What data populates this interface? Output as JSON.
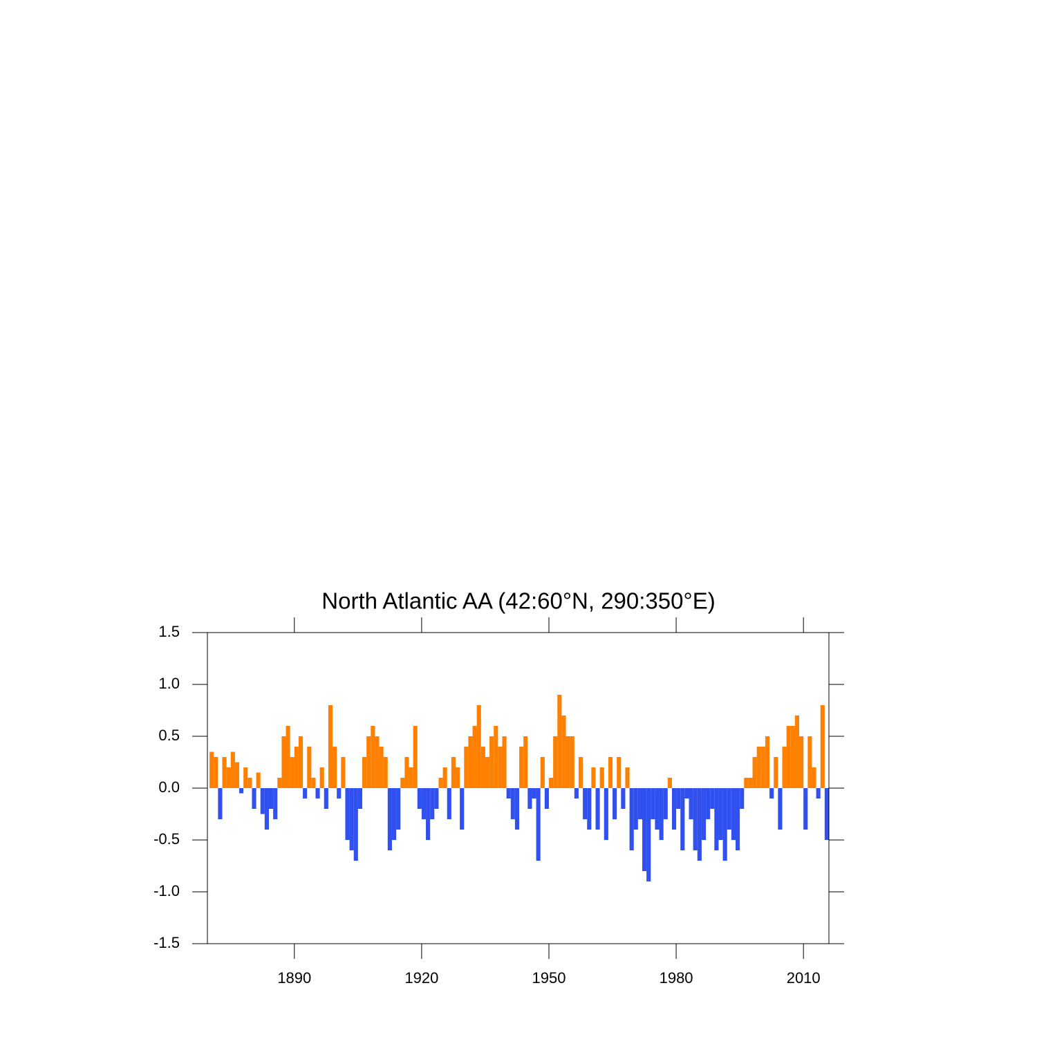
{
  "chart_data": {
    "type": "bar",
    "title": "North Atlantic AA (42:60°N, 290:350°E)",
    "x": [
      1870,
      1871,
      1872,
      1873,
      1874,
      1875,
      1876,
      1877,
      1878,
      1879,
      1880,
      1881,
      1882,
      1883,
      1884,
      1885,
      1886,
      1887,
      1888,
      1889,
      1890,
      1891,
      1892,
      1893,
      1894,
      1895,
      1896,
      1897,
      1898,
      1899,
      1900,
      1901,
      1902,
      1903,
      1904,
      1905,
      1906,
      1907,
      1908,
      1909,
      1910,
      1911,
      1912,
      1913,
      1914,
      1915,
      1916,
      1917,
      1918,
      1919,
      1920,
      1921,
      1922,
      1923,
      1924,
      1925,
      1926,
      1927,
      1928,
      1929,
      1930,
      1931,
      1932,
      1933,
      1934,
      1935,
      1936,
      1937,
      1938,
      1939,
      1940,
      1941,
      1942,
      1943,
      1944,
      1945,
      1946,
      1947,
      1948,
      1949,
      1950,
      1951,
      1952,
      1953,
      1954,
      1955,
      1956,
      1957,
      1958,
      1959,
      1960,
      1961,
      1962,
      1963,
      1964,
      1965,
      1966,
      1967,
      1968,
      1969,
      1970,
      1971,
      1972,
      1973,
      1974,
      1975,
      1976,
      1977,
      1978,
      1979,
      1980,
      1981,
      1982,
      1983,
      1984,
      1985,
      1986,
      1987,
      1988,
      1989,
      1990,
      1991,
      1992,
      1993,
      1994,
      1995,
      1996,
      1997,
      1998,
      1999,
      2000,
      2001,
      2002,
      2003,
      2004,
      2005,
      2006,
      2007,
      2008,
      2009,
      2010,
      2011,
      2012,
      2013,
      2014,
      2015
    ],
    "values": [
      0.35,
      0.3,
      -0.3,
      0.3,
      0.2,
      0.35,
      0.25,
      -0.05,
      0.2,
      0.1,
      -0.2,
      0.15,
      -0.25,
      -0.4,
      -0.2,
      -0.3,
      0.1,
      0.5,
      0.6,
      0.3,
      0.4,
      0.5,
      -0.1,
      0.4,
      0.1,
      -0.1,
      0.2,
      -0.2,
      0.8,
      0.4,
      -0.1,
      0.3,
      -0.5,
      -0.6,
      -0.7,
      -0.2,
      0.3,
      0.5,
      0.6,
      0.5,
      0.4,
      0.3,
      -0.6,
      -0.5,
      -0.4,
      0.1,
      0.3,
      0.2,
      0.6,
      -0.2,
      -0.3,
      -0.5,
      -0.3,
      -0.2,
      0.1,
      0.2,
      -0.3,
      0.3,
      0.2,
      -0.4,
      0.4,
      0.5,
      0.6,
      0.8,
      0.4,
      0.3,
      0.5,
      0.6,
      0.4,
      0.5,
      -0.1,
      -0.3,
      -0.4,
      0.4,
      0.5,
      -0.2,
      -0.1,
      -0.7,
      0.3,
      -0.2,
      0.1,
      0.5,
      0.9,
      0.7,
      0.5,
      0.5,
      -0.1,
      0.3,
      -0.3,
      -0.4,
      0.2,
      -0.4,
      0.2,
      -0.5,
      0.3,
      -0.3,
      0.3,
      -0.2,
      0.2,
      -0.6,
      -0.4,
      -0.3,
      -0.8,
      -0.9,
      -0.3,
      -0.4,
      -0.5,
      -0.3,
      0.1,
      -0.4,
      -0.2,
      -0.6,
      -0.1,
      -0.3,
      -0.6,
      -0.7,
      -0.5,
      -0.3,
      -0.2,
      -0.6,
      -0.5,
      -0.7,
      -0.4,
      -0.5,
      -0.6,
      -0.2,
      0.1,
      0.1,
      0.3,
      0.4,
      0.4,
      0.5,
      -0.1,
      0.3,
      -0.4,
      0.4,
      0.6,
      0.6,
      0.7,
      0.5,
      -0.4,
      0.5,
      0.2,
      -0.1,
      0.8,
      -0.5
    ],
    "above_color": "#ff8000",
    "below_color": "#3050f0",
    "xlim": [
      1869.5,
      2016
    ],
    "xticks": [
      1890,
      1920,
      1950,
      1980,
      2010
    ],
    "ylim": [
      -1.5,
      1.5
    ],
    "yticks": [
      {
        "value": -1.5,
        "label": "-1.5"
      },
      {
        "value": -1,
        "label": "-1.0"
      },
      -0.5,
      {
        "value": 0,
        "label": "0.0"
      },
      0.5,
      {
        "value": 1,
        "label": "1.0"
      },
      1.5
    ]
  }
}
